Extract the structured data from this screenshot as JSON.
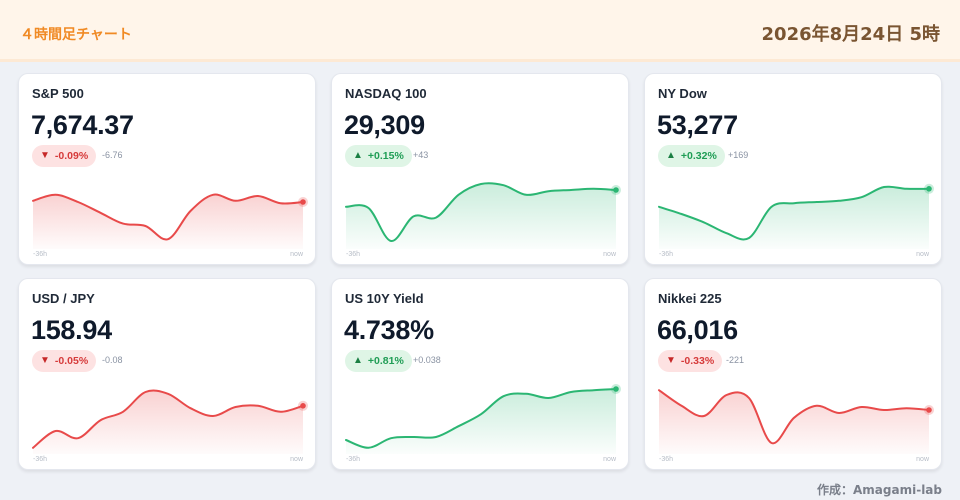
{
  "header": {
    "title": "４時間足チャート",
    "date": "2026年8月24日 5時"
  },
  "footer": {
    "credit": "作成：Amagami-lab"
  },
  "colors": {
    "up_line": "#2bb673",
    "down_line": "#e84a4a",
    "header_bg": "#fff5ea",
    "title": "#f08a24"
  },
  "cards": [
    {
      "name": "S&P 500",
      "value": "7,674.37",
      "change_pct": "-0.09%",
      "change_abs": "-6.76",
      "direction": "down",
      "arrow": "▼",
      "axis_start": "-36h",
      "axis_end": "now"
    },
    {
      "name": "NASDAQ 100",
      "value": "29,309",
      "change_pct": "+0.15%",
      "change_abs": "+43",
      "direction": "up",
      "arrow": "▲",
      "axis_start": "-36h",
      "axis_end": "now"
    },
    {
      "name": "NY Dow",
      "value": "53,277",
      "change_pct": "+0.32%",
      "change_abs": "+169",
      "direction": "up",
      "arrow": "▲",
      "axis_start": "-36h",
      "axis_end": "now"
    },
    {
      "name": "USD / JPY",
      "value": "158.94",
      "change_pct": "-0.05%",
      "change_abs": "-0.08",
      "direction": "down",
      "arrow": "▼",
      "axis_start": "-36h",
      "axis_end": "now"
    },
    {
      "name": "US 10Y Yield",
      "value": "4.738%",
      "change_pct": "+0.81%",
      "change_abs": "+0.038",
      "direction": "up",
      "arrow": "▲",
      "axis_start": "-36h",
      "axis_end": "now"
    },
    {
      "name": "Nikkei 225",
      "value": "66,016",
      "change_pct": "-0.33%",
      "change_abs": "-221",
      "direction": "down",
      "arrow": "▼",
      "axis_start": "-36h",
      "axis_end": "now"
    }
  ],
  "chart_data": [
    {
      "type": "area",
      "series": [
        {
          "values": [
            0.72,
            0.82,
            0.7,
            0.52,
            0.34,
            0.3,
            0.08,
            0.55,
            0.82,
            0.72,
            0.8,
            0.68,
            0.7
          ]
        }
      ]
    },
    {
      "type": "area",
      "series": [
        {
          "values": [
            0.62,
            0.6,
            0.05,
            0.46,
            0.44,
            0.82,
            1.0,
            0.98,
            0.82,
            0.88,
            0.9,
            0.92,
            0.9
          ]
        }
      ]
    },
    {
      "type": "area",
      "series": [
        {
          "values": [
            0.62,
            0.5,
            0.36,
            0.18,
            0.1,
            0.62,
            0.68,
            0.7,
            0.72,
            0.78,
            0.95,
            0.92,
            0.92
          ]
        }
      ]
    },
    {
      "type": "area",
      "series": [
        {
          "values": [
            0.02,
            0.3,
            0.18,
            0.48,
            0.62,
            0.95,
            0.92,
            0.68,
            0.55,
            0.7,
            0.72,
            0.62,
            0.72
          ]
        }
      ]
    },
    {
      "type": "area",
      "series": [
        {
          "values": [
            0.15,
            0.02,
            0.18,
            0.2,
            0.2,
            0.38,
            0.58,
            0.88,
            0.92,
            0.85,
            0.95,
            0.98,
            1.0
          ]
        }
      ]
    },
    {
      "type": "area",
      "series": [
        {
          "values": [
            0.98,
            0.72,
            0.55,
            0.9,
            0.85,
            0.1,
            0.52,
            0.72,
            0.6,
            0.7,
            0.65,
            0.68,
            0.65
          ]
        }
      ]
    }
  ]
}
